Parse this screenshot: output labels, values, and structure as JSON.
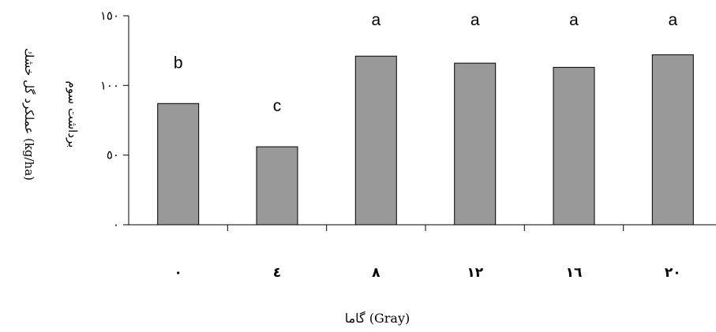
{
  "chart_data": {
    "type": "bar",
    "categories": [
      "٠",
      "٤",
      "٨",
      "١٢",
      "١٦",
      "٢٠"
    ],
    "values": [
      87,
      56,
      121,
      116,
      113,
      122
    ],
    "significance_letters": [
      "b",
      "c",
      "a",
      "a",
      "a",
      "a"
    ],
    "ylim": [
      0,
      150
    ],
    "yticks": [
      0,
      50,
      100,
      150
    ],
    "ytick_labels": [
      "٠",
      "٥٠",
      "١٠٠",
      "١٥٠"
    ],
    "ylabel_line1": "عملكرد گل خشك (kg/ha)",
    "ylabel_line2": "برداشت سوم",
    "xlabel": "گاما (Gray)",
    "grid": false,
    "bar_color": "#999999",
    "bar_edge_color": "#000000"
  }
}
